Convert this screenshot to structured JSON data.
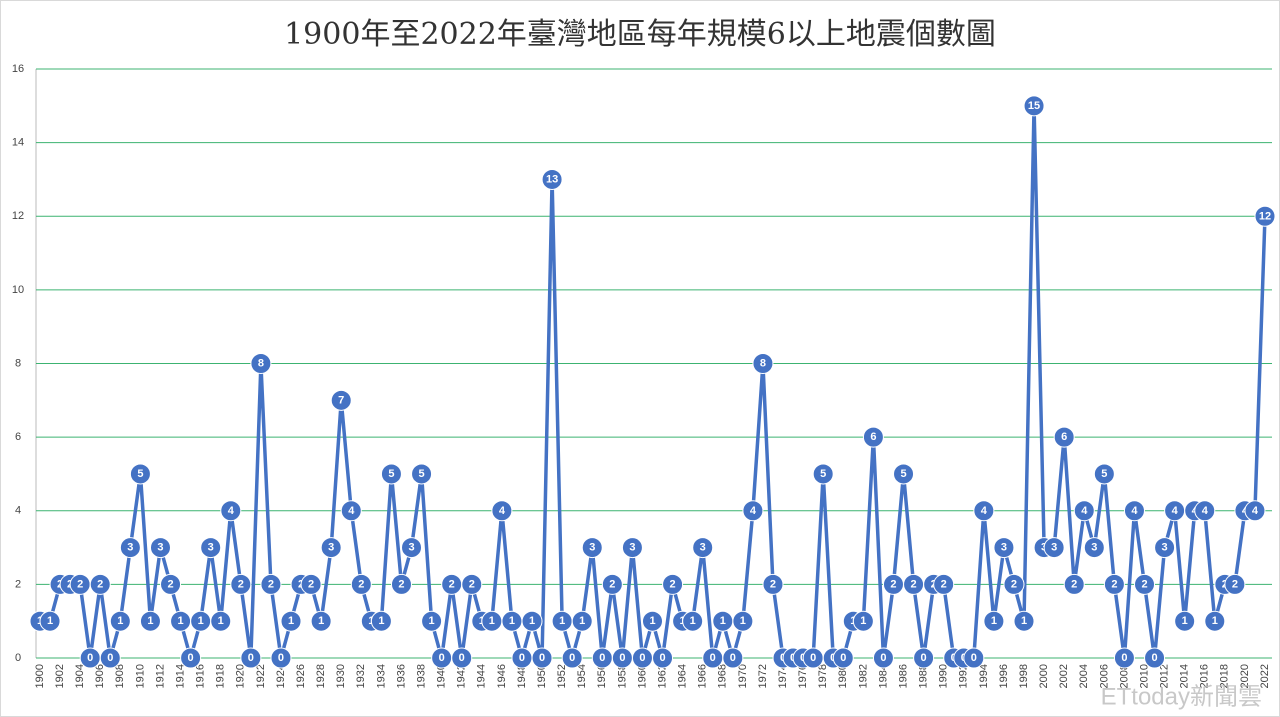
{
  "chart_data": {
    "type": "line",
    "title": "1900年至2022年臺灣地區每年規模6以上地震個數圖",
    "watermark": "ETtoday新聞雲",
    "categories": [
      "1900",
      null,
      "1902",
      null,
      "1904",
      null,
      "1906",
      null,
      "1908",
      null,
      "1910",
      null,
      "1912",
      null,
      "1914",
      null,
      "1916",
      null,
      "1918",
      null,
      "1920",
      null,
      "1922",
      null,
      "1924",
      null,
      "1926",
      null,
      "1928",
      null,
      "1930",
      null,
      "1932",
      null,
      "1934",
      null,
      "1936",
      null,
      "1938",
      null,
      "1940",
      null,
      "1942",
      null,
      "1944",
      null,
      "1946",
      null,
      "1948",
      null,
      "1950",
      null,
      "1952",
      null,
      "1954",
      null,
      "1956",
      null,
      "1958",
      null,
      "1960",
      null,
      "1962",
      null,
      "1964",
      null,
      "1966",
      null,
      "1968",
      null,
      "1970",
      null,
      "1972",
      null,
      "1974",
      null,
      "1976",
      null,
      "1978",
      null,
      "1980",
      null,
      "1982",
      null,
      "1984",
      null,
      "1986",
      null,
      "1988",
      null,
      "1990",
      null,
      "1992",
      null,
      "1994",
      null,
      "1996",
      null,
      "1998",
      null,
      "2000",
      null,
      "2002",
      null,
      "2004",
      null,
      "2006",
      null,
      "2008",
      null,
      "2010",
      null,
      "2012",
      null,
      "2014",
      null,
      "2016",
      null,
      "2018",
      null,
      "2020",
      null,
      "2022"
    ],
    "values": [
      1,
      1,
      2,
      2,
      2,
      0,
      2,
      0,
      1,
      3,
      5,
      1,
      3,
      2,
      1,
      0,
      1,
      3,
      1,
      4,
      2,
      0,
      8,
      2,
      0,
      1,
      2,
      2,
      1,
      3,
      7,
      4,
      2,
      1,
      1,
      5,
      2,
      3,
      5,
      1,
      0,
      2,
      0,
      2,
      1,
      1,
      4,
      1,
      0,
      1,
      0,
      13,
      1,
      0,
      1,
      3,
      0,
      2,
      0,
      3,
      0,
      1,
      0,
      2,
      1,
      1,
      3,
      0,
      1,
      0,
      1,
      4,
      8,
      2,
      0,
      0,
      0,
      0,
      5,
      0,
      0,
      1,
      1,
      6,
      0,
      2,
      5,
      2,
      0,
      2,
      2,
      0,
      0,
      0,
      4,
      1,
      3,
      2,
      1,
      15,
      3,
      3,
      6,
      2,
      4,
      3,
      5,
      2,
      0,
      4,
      2,
      0,
      3,
      4,
      1,
      4,
      4,
      1,
      2,
      2,
      4,
      4,
      12
    ],
    "color": "#4472c4",
    "ylim": [
      0,
      16
    ],
    "yticks": [
      0,
      2,
      4,
      6,
      8,
      10,
      12,
      14,
      16
    ],
    "grid": true
  }
}
